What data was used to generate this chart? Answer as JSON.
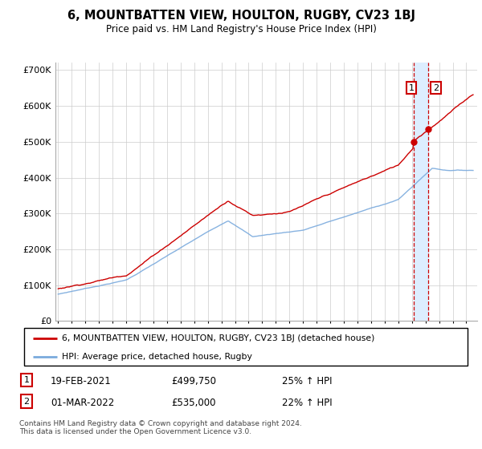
{
  "title": "6, MOUNTBATTEN VIEW, HOULTON, RUGBY, CV23 1BJ",
  "subtitle": "Price paid vs. HM Land Registry's House Price Index (HPI)",
  "legend_line1": "6, MOUNTBATTEN VIEW, HOULTON, RUGBY, CV23 1BJ (detached house)",
  "legend_line2": "HPI: Average price, detached house, Rugby",
  "footer": "Contains HM Land Registry data © Crown copyright and database right 2024.\nThis data is licensed under the Open Government Licence v3.0.",
  "transaction1_label": "1",
  "transaction1_date": "19-FEB-2021",
  "transaction1_price": "£499,750",
  "transaction1_hpi": "25% ↑ HPI",
  "transaction1_year": 2021.12,
  "transaction1_value": 499750,
  "transaction2_label": "2",
  "transaction2_date": "01-MAR-2022",
  "transaction2_price": "£535,000",
  "transaction2_hpi": "22% ↑ HPI",
  "transaction2_year": 2022.17,
  "transaction2_value": 535000,
  "red_color": "#cc0000",
  "blue_color": "#7aaadd",
  "shade_color": "#ddeeff",
  "grid_color": "#cccccc",
  "ylim": [
    0,
    720000
  ],
  "yticks": [
    0,
    100000,
    200000,
    300000,
    400000,
    500000,
    600000,
    700000
  ],
  "ytick_labels": [
    "£0",
    "£100K",
    "£200K",
    "£300K",
    "£400K",
    "£500K",
    "£600K",
    "£700K"
  ],
  "xstart": 1995.0,
  "xend": 2025.5,
  "xlim_left": 1994.8,
  "xlim_right": 2025.8
}
